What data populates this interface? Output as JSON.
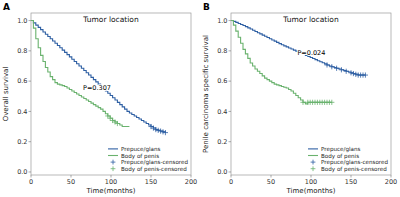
{
  "chart_data": [
    {
      "type": "step",
      "title": "Tumor location",
      "x_label": "Time(months)",
      "y_label": "Overall survival",
      "xlim": [
        0,
        200
      ],
      "ylim": [
        -0.02,
        1.05
      ],
      "xticks": [
        0,
        50,
        100,
        150,
        200
      ],
      "yticks": [
        {
          "value": 0.0,
          "label": "0.0"
        },
        0.2,
        0.4,
        0.6,
        0.8,
        {
          "value": 1.0,
          "label": "1.0"
        }
      ],
      "grid": false,
      "legend": "lower right",
      "annotations": [
        {
          "text": "A"
        },
        {
          "text": "P=0.307",
          "x": 65,
          "y": 0.54
        }
      ],
      "series": [
        {
          "name": "Prepuce/glans",
          "type": "step",
          "color": "#2e5fa3",
          "x": [
            0,
            3,
            6,
            9,
            12,
            15,
            18,
            21,
            24,
            27,
            30,
            33,
            36,
            39,
            42,
            45,
            48,
            51,
            54,
            57,
            60,
            63,
            66,
            69,
            72,
            75,
            78,
            81,
            84,
            87,
            90,
            93,
            96,
            99,
            102,
            105,
            108,
            111,
            114,
            117,
            120,
            123,
            126,
            129,
            132,
            135,
            138,
            141,
            144,
            147,
            150,
            153,
            156,
            159,
            162,
            165,
            168
          ],
          "values": [
            1.0,
            0.985,
            0.97,
            0.955,
            0.94,
            0.925,
            0.91,
            0.895,
            0.88,
            0.865,
            0.85,
            0.835,
            0.82,
            0.805,
            0.79,
            0.775,
            0.76,
            0.745,
            0.73,
            0.715,
            0.7,
            0.685,
            0.67,
            0.655,
            0.64,
            0.625,
            0.61,
            0.595,
            0.58,
            0.565,
            0.55,
            0.535,
            0.52,
            0.505,
            0.49,
            0.475,
            0.46,
            0.445,
            0.43,
            0.415,
            0.4,
            0.39,
            0.38,
            0.37,
            0.36,
            0.35,
            0.34,
            0.33,
            0.32,
            0.31,
            0.3,
            0.29,
            0.28,
            0.275,
            0.27,
            0.265,
            0.26
          ]
        },
        {
          "name": "Body of penis",
          "type": "step",
          "color": "#6ab26e",
          "x": [
            0,
            3,
            6,
            9,
            12,
            15,
            18,
            21,
            24,
            27,
            30,
            33,
            36,
            39,
            42,
            45,
            48,
            51,
            54,
            57,
            60,
            63,
            66,
            69,
            72,
            75,
            78,
            81,
            84,
            87,
            90,
            93,
            96,
            99,
            102,
            105,
            108,
            111,
            114,
            117,
            120,
            123
          ],
          "values": [
            1.0,
            0.95,
            0.88,
            0.82,
            0.77,
            0.73,
            0.69,
            0.66,
            0.63,
            0.61,
            0.59,
            0.58,
            0.575,
            0.57,
            0.565,
            0.555,
            0.545,
            0.535,
            0.525,
            0.515,
            0.505,
            0.495,
            0.485,
            0.475,
            0.465,
            0.455,
            0.445,
            0.435,
            0.425,
            0.415,
            0.4,
            0.385,
            0.37,
            0.355,
            0.34,
            0.33,
            0.32,
            0.31,
            0.3,
            0.3,
            0.3,
            0.3
          ]
        },
        {
          "name": "Prepuce/glans-censored",
          "type": "scatter",
          "marker": "plus",
          "color": "#2e5fa3",
          "x": [
            150,
            153,
            156,
            159,
            162,
            165,
            168
          ],
          "values": [
            0.3,
            0.29,
            0.28,
            0.275,
            0.27,
            0.265,
            0.26
          ]
        },
        {
          "name": "Body of penis-censored",
          "type": "scatter",
          "marker": "plus",
          "color": "#6ab26e",
          "x": [
            96,
            99,
            102,
            105,
            108
          ],
          "values": [
            0.37,
            0.355,
            0.34,
            0.33,
            0.32
          ]
        }
      ]
    },
    {
      "type": "step",
      "title": "Tumor location",
      "x_label": "Time(months)",
      "y_label": "Penile carcinoma specific survival",
      "xlim": [
        0,
        200
      ],
      "ylim": [
        -0.02,
        1.05
      ],
      "xticks": [
        0,
        50,
        100,
        150,
        200
      ],
      "yticks": [
        {
          "value": 0.0,
          "label": "0.0"
        },
        0.2,
        0.4,
        0.6,
        0.8,
        {
          "value": 1.0,
          "label": "1.0"
        }
      ],
      "grid": false,
      "legend": "lower right",
      "annotations": [
        {
          "text": "B"
        },
        {
          "text": "P=0.024",
          "x": 83,
          "y": 0.77
        }
      ],
      "series": [
        {
          "name": "Prepuce/glans",
          "type": "step",
          "color": "#2e5fa3",
          "x": [
            0,
            3,
            6,
            9,
            12,
            15,
            18,
            21,
            24,
            27,
            30,
            33,
            36,
            39,
            42,
            45,
            48,
            51,
            54,
            57,
            60,
            63,
            66,
            69,
            72,
            75,
            78,
            81,
            84,
            87,
            90,
            93,
            96,
            99,
            102,
            105,
            108,
            111,
            114,
            117,
            120,
            123,
            126,
            129,
            132,
            135,
            138,
            141,
            144,
            147,
            150,
            153,
            156,
            159,
            162,
            165,
            168
          ],
          "values": [
            1.0,
            0.995,
            0.988,
            0.981,
            0.974,
            0.967,
            0.96,
            0.952,
            0.944,
            0.936,
            0.928,
            0.92,
            0.912,
            0.904,
            0.896,
            0.888,
            0.88,
            0.872,
            0.864,
            0.856,
            0.848,
            0.84,
            0.833,
            0.826,
            0.819,
            0.812,
            0.805,
            0.798,
            0.791,
            0.784,
            0.777,
            0.77,
            0.763,
            0.756,
            0.749,
            0.742,
            0.735,
            0.728,
            0.721,
            0.714,
            0.707,
            0.7,
            0.695,
            0.69,
            0.685,
            0.68,
            0.675,
            0.67,
            0.665,
            0.66,
            0.655,
            0.65,
            0.645,
            0.64,
            0.64,
            0.64,
            0.64
          ]
        },
        {
          "name": "Body of penis",
          "type": "step",
          "color": "#6ab26e",
          "x": [
            0,
            3,
            6,
            9,
            12,
            15,
            18,
            21,
            24,
            27,
            30,
            33,
            36,
            39,
            42,
            45,
            48,
            51,
            54,
            57,
            60,
            63,
            66,
            69,
            72,
            75,
            78,
            81,
            84,
            87,
            90,
            93,
            96,
            99,
            102,
            105,
            108,
            111,
            114,
            117,
            120,
            123,
            126
          ],
          "values": [
            1.0,
            0.97,
            0.93,
            0.89,
            0.85,
            0.81,
            0.78,
            0.75,
            0.72,
            0.7,
            0.68,
            0.665,
            0.65,
            0.635,
            0.62,
            0.61,
            0.6,
            0.59,
            0.58,
            0.575,
            0.57,
            0.565,
            0.56,
            0.555,
            0.545,
            0.535,
            0.52,
            0.505,
            0.49,
            0.475,
            0.46,
            0.45,
            0.46,
            0.46,
            0.46,
            0.46,
            0.46,
            0.46,
            0.46,
            0.46,
            0.46,
            0.46,
            0.46
          ]
        },
        {
          "name": "Prepuce/glans-censored",
          "type": "scatter",
          "marker": "plus",
          "color": "#2e5fa3",
          "x": [
            120,
            126,
            132,
            138,
            144,
            150,
            153,
            156,
            159,
            162,
            165,
            168
          ],
          "values": [
            0.707,
            0.695,
            0.685,
            0.675,
            0.665,
            0.655,
            0.65,
            0.645,
            0.64,
            0.64,
            0.64,
            0.64
          ]
        },
        {
          "name": "Body of penis-censored",
          "type": "scatter",
          "marker": "plus",
          "color": "#6ab26e",
          "x": [
            90,
            96,
            99,
            102,
            105,
            108,
            111,
            114,
            117,
            120,
            123,
            126
          ],
          "values": [
            0.46,
            0.46,
            0.46,
            0.46,
            0.46,
            0.46,
            0.46,
            0.46,
            0.46,
            0.46,
            0.46,
            0.46
          ]
        }
      ]
    }
  ]
}
